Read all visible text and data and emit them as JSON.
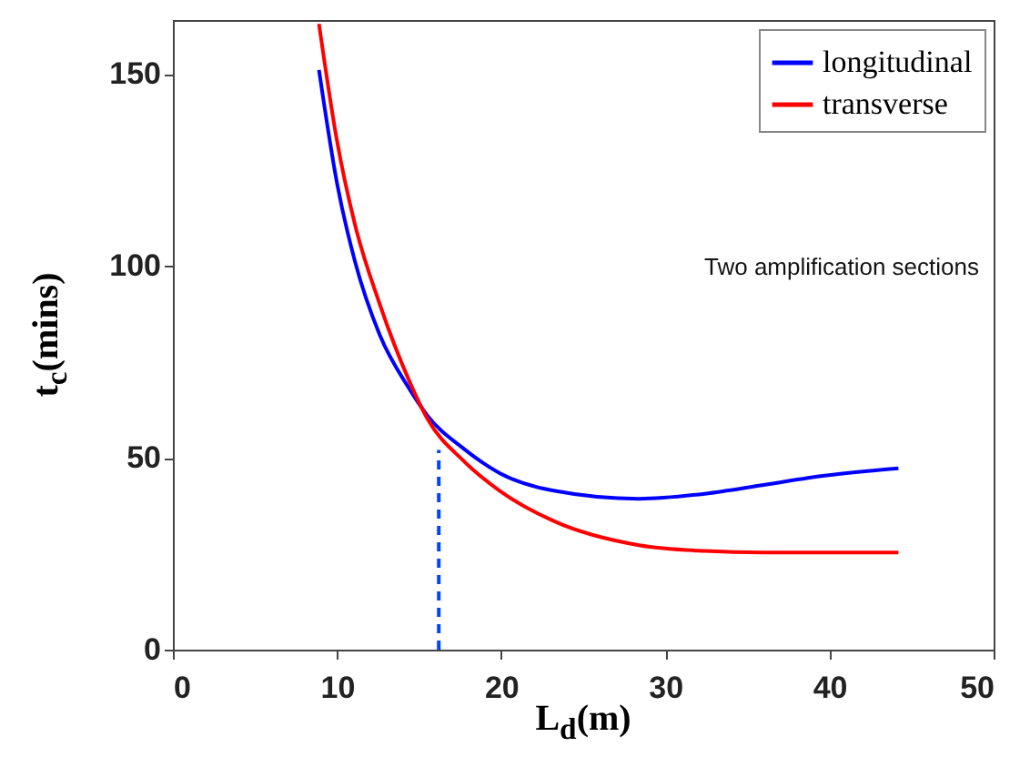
{
  "chart_data": {
    "type": "line",
    "xlabel": "L$_{d}$(m)",
    "ylabel": "t$_{c}$(mins)",
    "xlim": [
      0,
      50
    ],
    "ylim": [
      0,
      164
    ],
    "xticks": [
      0,
      10,
      20,
      30,
      40,
      50
    ],
    "yticks": [
      0,
      50,
      100,
      150
    ],
    "grid": false,
    "legend": "top right",
    "annotations": [
      "Two amplification sections"
    ],
    "series": [
      {
        "name": "longitudinal",
        "color": "#0000ff",
        "x": [
          8.9,
          10,
          11.1,
          12.6,
          14.4,
          15.5,
          17.7,
          19.9,
          23.2,
          28.4,
          32.4,
          36,
          39.7,
          44.2
        ],
        "values": [
          151,
          121.5,
          101,
          82,
          68,
          61,
          52.4,
          46,
          41.4,
          39.3,
          40.6,
          42.9,
          45.3,
          47.2
        ]
      },
      {
        "name": "transverse",
        "color": "#ff0000",
        "x": [
          8.9,
          10,
          11.1,
          12.6,
          14.4,
          15.5,
          17.7,
          19.9,
          23.2,
          28.4,
          32.4,
          36,
          44.2
        ],
        "values": [
          163,
          132.5,
          110.6,
          90,
          70,
          60.2,
          49.2,
          41.4,
          33.5,
          27.2,
          25.7,
          25.3,
          25.3
        ]
      },
      {
        "color": "#0044ff",
        "line_style": "dashed",
        "x": [
          16.2,
          16.2
        ],
        "values": [
          0,
          52
        ]
      }
    ]
  }
}
